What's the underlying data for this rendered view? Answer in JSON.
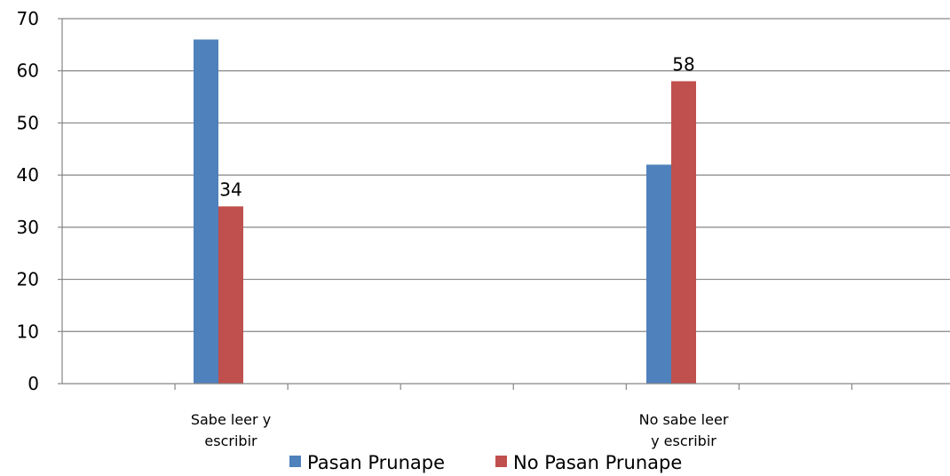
{
  "chart_data": {
    "type": "bar",
    "title": "",
    "xlabel": "",
    "ylabel": "",
    "ylim": [
      0,
      70
    ],
    "yticks": [
      0,
      10,
      20,
      30,
      40,
      50,
      60,
      70
    ],
    "grid": "horizontal",
    "legend_position": "bottom",
    "categories": [
      {
        "label_lines": [
          "Sabe leer y",
          "escribir"
        ]
      },
      {
        "label_lines": [
          "No sabe leer",
          "y escribir"
        ]
      }
    ],
    "series": [
      {
        "name": "Pasan Prunape",
        "color": "#4f81bd",
        "values": [
          66,
          42
        ],
        "data_labels": [
          null,
          null
        ]
      },
      {
        "name": "No Pasan Prunape",
        "color": "#c0504d",
        "values": [
          34,
          58
        ],
        "data_labels": [
          "34",
          "58"
        ]
      }
    ]
  }
}
